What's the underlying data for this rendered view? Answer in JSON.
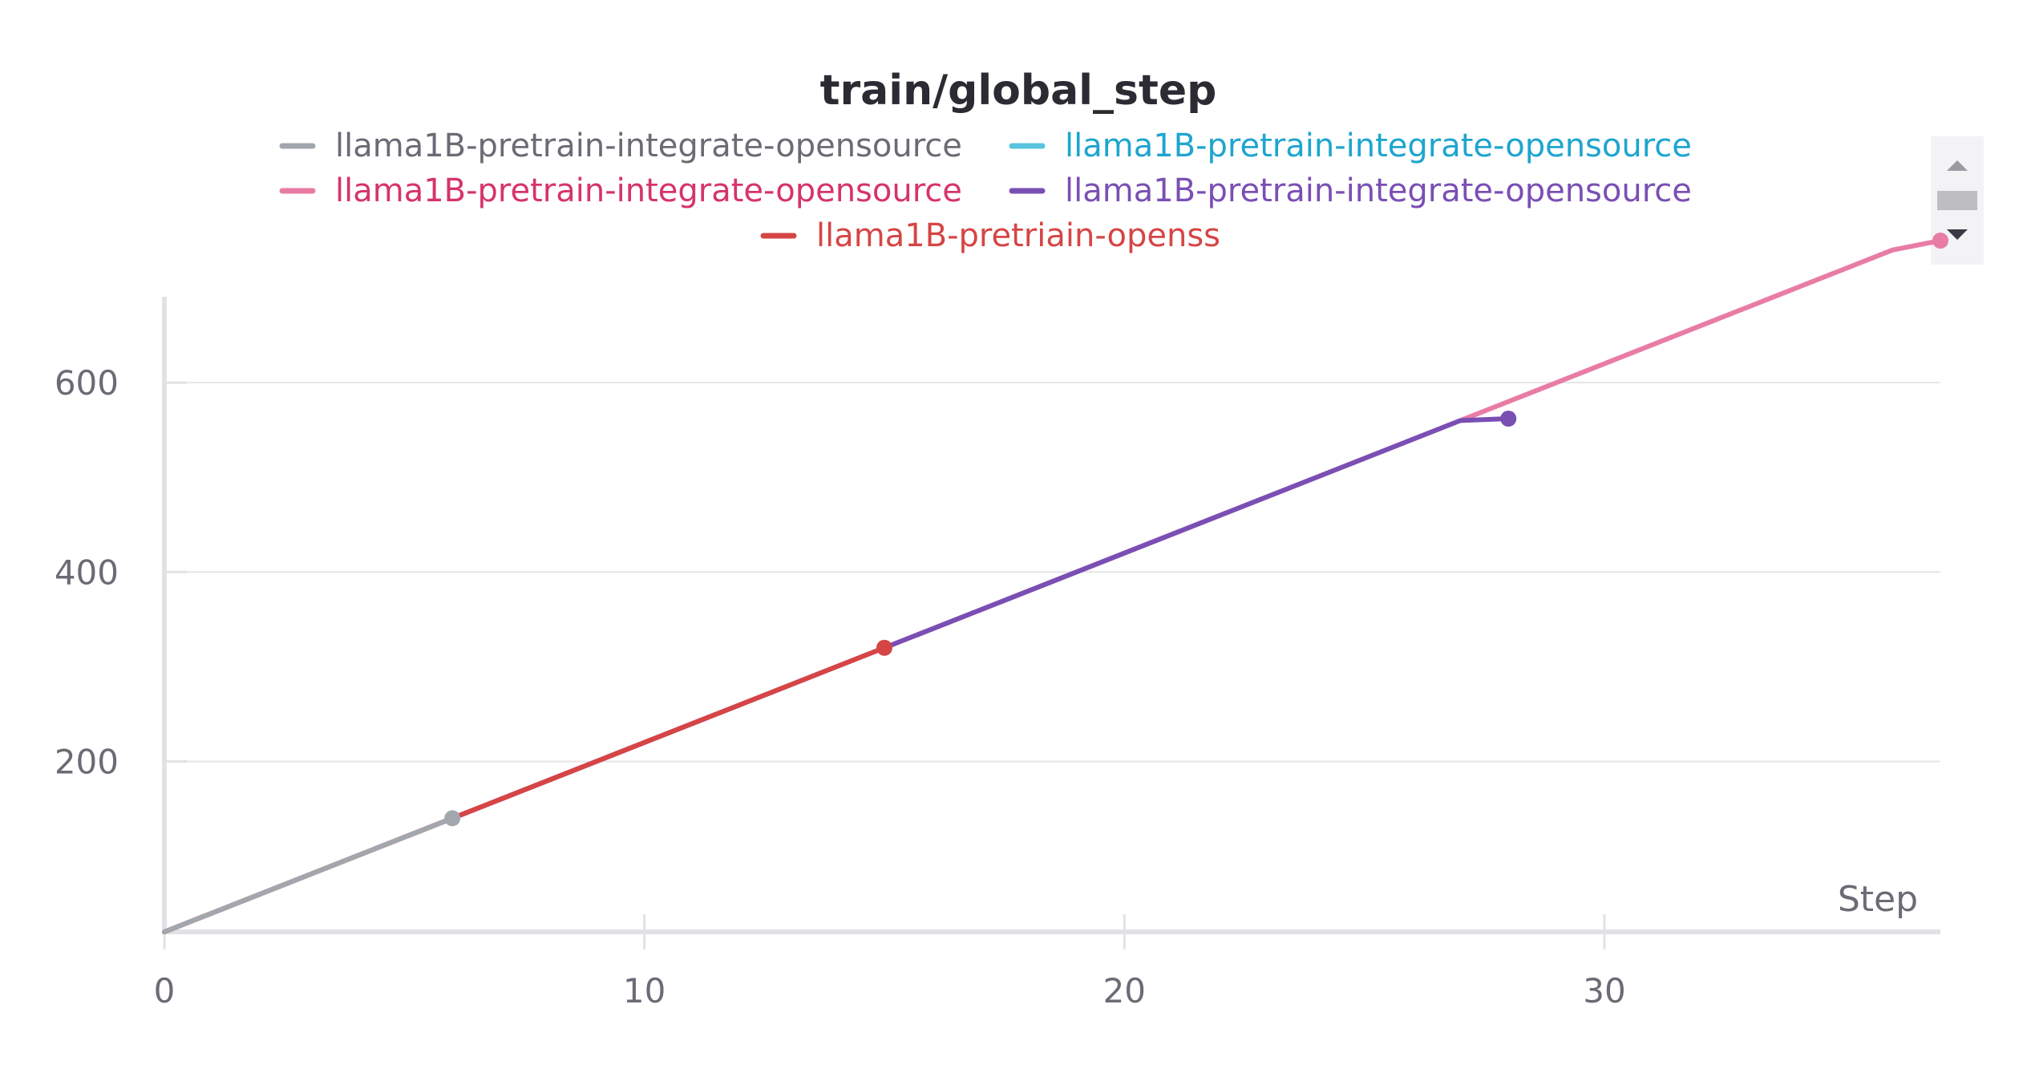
{
  "chart_data": {
    "type": "line",
    "title": "train/global_step",
    "xlabel": "Step",
    "ylabel": "",
    "xlim": [
      0,
      37
    ],
    "ylim": [
      20,
      750
    ],
    "xticks": [
      0,
      10,
      20,
      30
    ],
    "yticks": [
      200,
      400,
      600
    ],
    "grid": true,
    "legend_placement": "top-center",
    "series": [
      {
        "name": "llama1B-pretrain-integrate-opensource",
        "color": "#a2a7ad",
        "x": [
          0,
          6
        ],
        "y": [
          20,
          140
        ],
        "end_marker": true
      },
      {
        "name": "llama1B-pretrain-integrate-opensource",
        "color": "#58c4dd",
        "x": [],
        "y": [],
        "end_marker": false
      },
      {
        "name": "llama1B-pretrain-integrate-opensource",
        "color": "#e87ca5",
        "x": [
          0,
          36,
          37
        ],
        "y": [
          20,
          740,
          750
        ],
        "end_marker": true
      },
      {
        "name": "llama1B-pretrain-integrate-opensource",
        "color": "#7a4fb4",
        "x": [
          0,
          27,
          28
        ],
        "y": [
          20,
          560,
          562
        ],
        "end_marker": true
      },
      {
        "name": "llama1B-pretriain-openss",
        "color": "#d64545",
        "x": [
          0,
          15
        ],
        "y": [
          20,
          320
        ],
        "end_marker": true
      }
    ],
    "legend_text_colors": [
      "#6b6b76",
      "#1ea5cf",
      "#d6336c",
      "#7a4fb4",
      "#d64545"
    ]
  }
}
